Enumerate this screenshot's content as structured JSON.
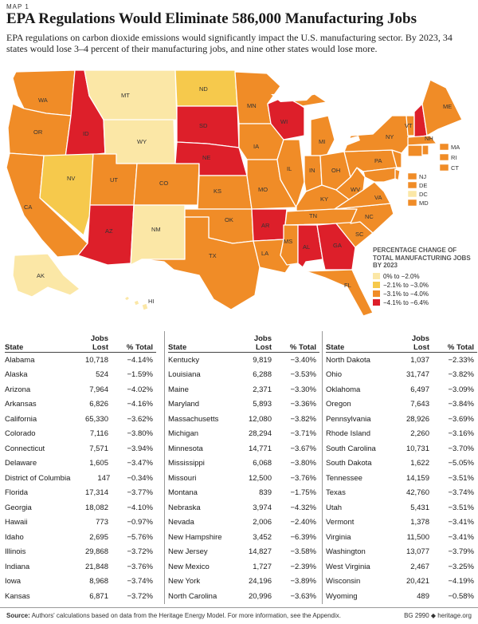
{
  "header": {
    "map_label": "MAP 1",
    "title": "EPA Regulations Would Eliminate 586,000 Manufacturing Jobs",
    "subtitle": "EPA regulations on carbon dioxide emissions would significantly impact the U.S. manufacturing sector. By 2023, 34 states would lose 3–4 percent of their manufacturing jobs, and nine other states would lose more."
  },
  "colors": {
    "c1": "#fbe7a6",
    "c2": "#f6c94c",
    "c3": "#f08c27",
    "c4": "#dd1f2a",
    "lake": "#ffffff",
    "border": "#ffffff"
  },
  "legend": {
    "title": "PERCENTAGE CHANGE OF TOTAL MANUFACTURING JOBS BY 2023",
    "entries": [
      {
        "label": "0% to −2.0%",
        "color": "#fbe7a6"
      },
      {
        "label": "−2.1% to −3.0%",
        "color": "#f6c94c"
      },
      {
        "label": "−3.1% to −4.0%",
        "color": "#f08c27"
      },
      {
        "label": "−4.1% to −6.4%",
        "color": "#dd1f2a"
      }
    ]
  },
  "map_labels": {
    "WA": "WA",
    "OR": "OR",
    "CA": "CA",
    "ID": "ID",
    "NV": "NV",
    "MT": "MT",
    "WY": "WY",
    "UT": "UT",
    "AZ": "AZ",
    "CO": "CO",
    "NM": "NM",
    "ND": "ND",
    "SD": "SD",
    "NE": "NE",
    "KS": "KS",
    "OK": "OK",
    "TX": "TX",
    "MN": "MN",
    "IA": "IA",
    "MO": "MO",
    "AR": "AR",
    "LA": "LA",
    "WI": "WI",
    "IL": "IL",
    "MI": "MI",
    "IN": "IN",
    "OH": "OH",
    "KY": "KY",
    "TN": "TN",
    "MS": "MS",
    "AL": "AL",
    "GA": "GA",
    "FL": "FL",
    "SC": "SC",
    "NC": "NC",
    "VA": "VA",
    "WV": "WV",
    "PA": "PA",
    "NY": "NY",
    "VT": "VT",
    "NH": "NH",
    "ME": "ME",
    "MA": "MA",
    "RI": "RI",
    "CT": "CT",
    "NJ": "NJ",
    "DE": "DE",
    "DC": "DC",
    "MD": "MD",
    "AK": "AK",
    "HI": "HI"
  },
  "table": {
    "headers": {
      "state": "State",
      "jobs_line1": "Jobs",
      "jobs_line2": "Lost",
      "pct": "% Total"
    },
    "columns": [
      [
        {
          "state": "Alabama",
          "jobs": "10,718",
          "pct": "−4.14%"
        },
        {
          "state": "Alaska",
          "jobs": "524",
          "pct": "−1.59%"
        },
        {
          "state": "Arizona",
          "jobs": "7,964",
          "pct": "−4.02%"
        },
        {
          "state": "Arkansas",
          "jobs": "6,826",
          "pct": "−4.16%"
        },
        {
          "state": "California",
          "jobs": "65,330",
          "pct": "−3.62%"
        },
        {
          "state": "Colorado",
          "jobs": "7,116",
          "pct": "−3.80%"
        },
        {
          "state": "Connecticut",
          "jobs": "7,571",
          "pct": "−3.94%"
        },
        {
          "state": "Delaware",
          "jobs": "1,605",
          "pct": "−3.47%"
        },
        {
          "state": "District of Columbia",
          "jobs": "147",
          "pct": "−0.34%"
        },
        {
          "state": "Florida",
          "jobs": "17,314",
          "pct": "−3.77%"
        },
        {
          "state": "Georgia",
          "jobs": "18,082",
          "pct": "−4.10%"
        },
        {
          "state": "Hawaii",
          "jobs": "773",
          "pct": "−0.97%"
        },
        {
          "state": "Idaho",
          "jobs": "2,695",
          "pct": "−5.76%"
        },
        {
          "state": "Illinois",
          "jobs": "29,868",
          "pct": "−3.72%"
        },
        {
          "state": "Indiana",
          "jobs": "21,848",
          "pct": "−3.76%"
        },
        {
          "state": "Iowa",
          "jobs": "8,968",
          "pct": "−3.74%"
        },
        {
          "state": "Kansas",
          "jobs": "6,871",
          "pct": "−3.72%"
        }
      ],
      [
        {
          "state": "Kentucky",
          "jobs": "9,819",
          "pct": "−3.40%"
        },
        {
          "state": "Louisiana",
          "jobs": "6,288",
          "pct": "−3.53%"
        },
        {
          "state": "Maine",
          "jobs": "2,371",
          "pct": "−3.30%"
        },
        {
          "state": "Maryland",
          "jobs": "5,893",
          "pct": "−3.36%"
        },
        {
          "state": "Massachusetts",
          "jobs": "12,080",
          "pct": "−3.82%"
        },
        {
          "state": "Michigan",
          "jobs": "28,294",
          "pct": "−3.71%"
        },
        {
          "state": "Minnesota",
          "jobs": "14,771",
          "pct": "−3.67%"
        },
        {
          "state": "Mississippi",
          "jobs": "6,068",
          "pct": "−3.80%"
        },
        {
          "state": "Missouri",
          "jobs": "12,500",
          "pct": "−3.76%"
        },
        {
          "state": "Montana",
          "jobs": "839",
          "pct": "−1.75%"
        },
        {
          "state": "Nebraska",
          "jobs": "3,974",
          "pct": "−4.32%"
        },
        {
          "state": "Nevada",
          "jobs": "2,006",
          "pct": "−2.40%"
        },
        {
          "state": "New Hampshire",
          "jobs": "3,452",
          "pct": "−6.39%"
        },
        {
          "state": "New Jersey",
          "jobs": "14,827",
          "pct": "−3.58%"
        },
        {
          "state": "New Mexico",
          "jobs": "1,727",
          "pct": "−2.39%"
        },
        {
          "state": "New York",
          "jobs": "24,196",
          "pct": "−3.89%"
        },
        {
          "state": "North Carolina",
          "jobs": "20,996",
          "pct": "−3.63%"
        }
      ],
      [
        {
          "state": "North Dakota",
          "jobs": "1,037",
          "pct": "−2.33%"
        },
        {
          "state": "Ohio",
          "jobs": "31,747",
          "pct": "−3.82%"
        },
        {
          "state": "Oklahoma",
          "jobs": "6,497",
          "pct": "−3.09%"
        },
        {
          "state": "Oregon",
          "jobs": "7,643",
          "pct": "−3.84%"
        },
        {
          "state": "Pennsylvania",
          "jobs": "28,926",
          "pct": "−3.69%"
        },
        {
          "state": "Rhode Island",
          "jobs": "2,260",
          "pct": "−3.16%"
        },
        {
          "state": "South Carolina",
          "jobs": "10,731",
          "pct": "−3.70%"
        },
        {
          "state": "South Dakota",
          "jobs": "1,622",
          "pct": "−5.05%"
        },
        {
          "state": "Tennessee",
          "jobs": "14,159",
          "pct": "−3.51%"
        },
        {
          "state": "Texas",
          "jobs": "42,760",
          "pct": "−3.74%"
        },
        {
          "state": "Utah",
          "jobs": "5,431",
          "pct": "−3.51%"
        },
        {
          "state": "Vermont",
          "jobs": "1,378",
          "pct": "−3.41%"
        },
        {
          "state": "Virginia",
          "jobs": "11,500",
          "pct": "−3.41%"
        },
        {
          "state": "Washington",
          "jobs": "13,077",
          "pct": "−3.79%"
        },
        {
          "state": "West Virginia",
          "jobs": "2,467",
          "pct": "−3.25%"
        },
        {
          "state": "Wisconsin",
          "jobs": "20,421",
          "pct": "−4.19%"
        },
        {
          "state": "Wyoming",
          "jobs": "489",
          "pct": "−0.58%"
        }
      ]
    ]
  },
  "footer": {
    "source_label": "Source:",
    "source_text": "Authors' calculations based on data from the Heritage Energy Model. For more information, see the Appendix.",
    "code": "BG 2990",
    "site": "heritage.org"
  }
}
